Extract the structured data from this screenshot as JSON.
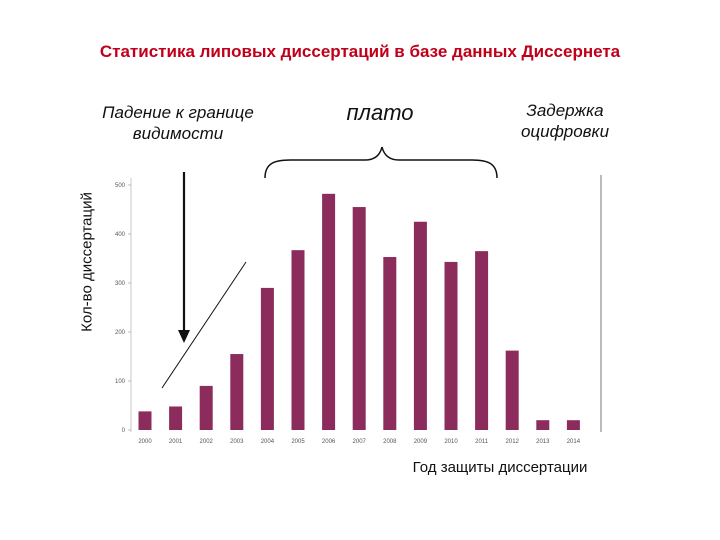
{
  "title": "Статистика липовых диссертаций в базе данных Диссернета",
  "annotations": {
    "left_line1": "Падение к границе",
    "left_line2": "видимости",
    "middle": "плато",
    "right_line1": "Задержка",
    "right_line2": "оцифровки"
  },
  "colors": {
    "bar": "#8b2c5c",
    "title": "#c0001a"
  },
  "chart_data": {
    "type": "bar",
    "title": "Статистика липовых диссертаций в базе данных Диссернета",
    "xlabel": "Год защиты диссертации",
    "ylabel": "Кол-во диссертаций",
    "categories": [
      "2000",
      "2001",
      "2002",
      "2003",
      "2004",
      "2005",
      "2006",
      "2007",
      "2008",
      "2009",
      "2010",
      "2011",
      "2012",
      "2013",
      "2014"
    ],
    "values": [
      38,
      48,
      90,
      155,
      290,
      367,
      482,
      455,
      353,
      425,
      343,
      365,
      162,
      20,
      20
    ],
    "ylim": [
      0,
      500
    ],
    "yticks": [
      0,
      100,
      200,
      300,
      400,
      500
    ],
    "grid": false,
    "legend": "none"
  }
}
